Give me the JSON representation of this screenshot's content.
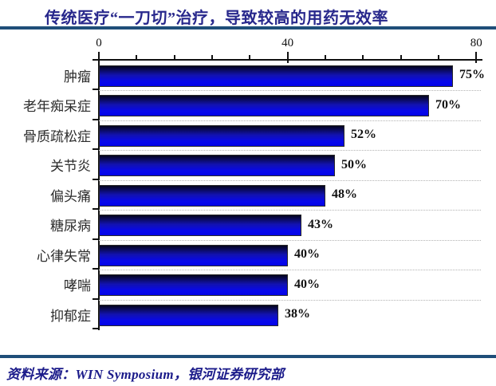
{
  "title": "传统医疗“一刀切”治疗，导致较高的用药无效率",
  "source": "资料来源：WIN Symposium，银河证券研究部",
  "colors": {
    "title_text": "#28288C",
    "rule": "#1F4E79",
    "source_text": "#1b1b8a",
    "bar_gradient_top": "#04041c",
    "bar_gradient_mid": "#1212b0",
    "bar_gradient_low": "#0707ec",
    "bar_gradient_bottom": "#0404e6",
    "axis": "#111111",
    "gridline": "#b3b3b3"
  },
  "chart_data": {
    "type": "bar",
    "orientation": "horizontal",
    "title": "传统医疗“一刀切”治疗，导致较高的用药无效率",
    "categories": [
      "肿瘤",
      "老年痴呆症",
      "骨质疏松症",
      "关节炎",
      "偏头痛",
      "糖尿病",
      "心律失常",
      "哮喘",
      "抑郁症"
    ],
    "values": [
      75,
      70,
      52,
      50,
      48,
      43,
      40,
      40,
      38
    ],
    "value_labels": [
      "75%",
      "70%",
      "52%",
      "50%",
      "48%",
      "43%",
      "40%",
      "40%",
      "38%"
    ],
    "xlabel": "",
    "ylabel": "",
    "xlim": [
      0,
      80
    ],
    "x_major_tick_labels": [
      "0",
      "40",
      "80"
    ],
    "x_major_ticks": [
      0,
      40,
      80
    ],
    "x_minor_step": 8,
    "grid": "dotted-horizontal-between-categories",
    "legend": "none",
    "axis_position": "top"
  }
}
